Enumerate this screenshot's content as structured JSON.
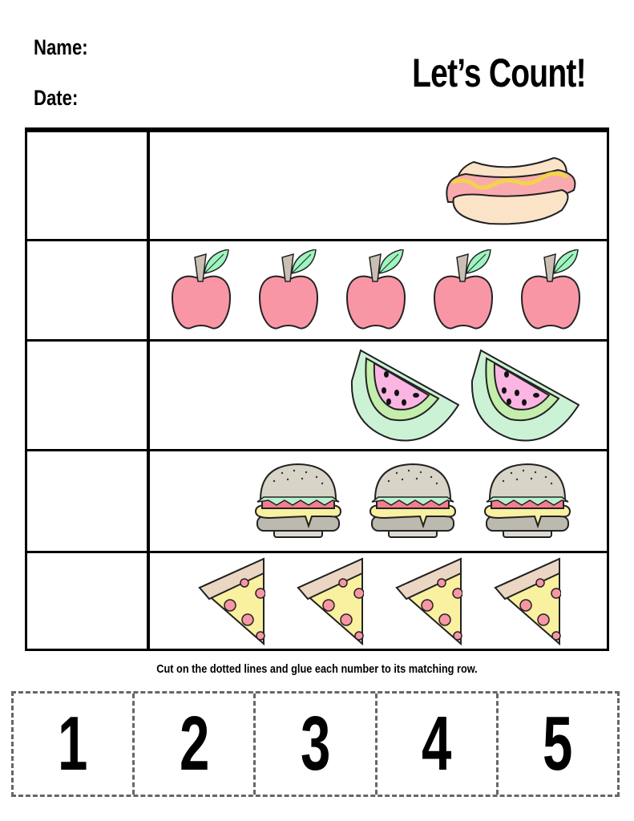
{
  "header": {
    "name_label": "Name:",
    "date_label": "Date:",
    "title": "Let’s Count!"
  },
  "rows": [
    {
      "food": "hot-dog",
      "count": 1
    },
    {
      "food": "apple",
      "count": 5
    },
    {
      "food": "watermelon",
      "count": 2
    },
    {
      "food": "burger",
      "count": 3
    },
    {
      "food": "pizza",
      "count": 4
    }
  ],
  "instruction": "Cut on the dotted lines and glue each number to its matching row.",
  "cards": [
    "1",
    "2",
    "3",
    "4",
    "5"
  ],
  "colors": {
    "pink": "#f996a6",
    "green": "#9ef5bf",
    "bun": "#fbe3c8",
    "mustard": "#f3d34a",
    "rind": "#ccf2d6",
    "flesh": "#fbb5e2",
    "cheese": "#f9f0a0",
    "gray": "#d8d4c8"
  }
}
